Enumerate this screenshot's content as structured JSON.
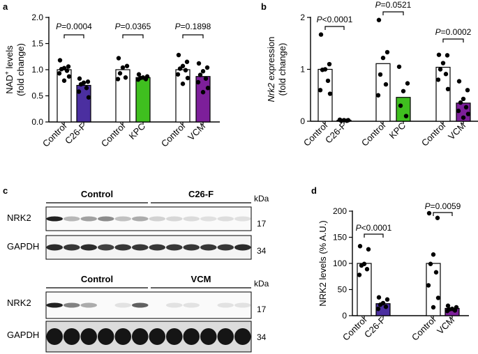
{
  "panel_labels": {
    "a": "a",
    "b": "b",
    "c": "c",
    "d": "d"
  },
  "colors": {
    "c26f": "#4b2fa0",
    "kpc": "#3fbf1f",
    "vcm": "#7d1f9a",
    "control": "#ffffff",
    "point": "#000000"
  },
  "chart_data": [
    {
      "panel": "a",
      "type": "bar",
      "ylabel_line1": "NAD",
      "ylabel_sup": "+",
      "ylabel_line1_rest": " levels",
      "ylabel_line2": "(fold change)",
      "ylim": [
        0,
        2.0
      ],
      "yticks": [
        "0.0",
        "0.5",
        "1.0",
        "1.5",
        "2.0"
      ],
      "ytick_values": [
        0,
        0.5,
        1.0,
        1.5,
        2.0
      ],
      "categories": [
        "Control",
        "C26-F",
        "Control",
        "KPC",
        "Control",
        "VCM"
      ],
      "fills": [
        "control",
        "c26f",
        "control",
        "kpc",
        "control",
        "vcm"
      ],
      "values": [
        1.0,
        0.7,
        1.0,
        0.85,
        1.0,
        0.87
      ],
      "points": [
        [
          1.18,
          1.06,
          1.03,
          1.01,
          0.98,
          0.93,
          0.87,
          0.79
        ],
        [
          0.83,
          0.77,
          0.75,
          0.72,
          0.65,
          0.58,
          0.47
        ],
        [
          1.22,
          1.07,
          1.04,
          0.93,
          0.85,
          0.82
        ],
        [
          0.91,
          0.87,
          0.85,
          0.84,
          0.82,
          0.81
        ],
        [
          1.28,
          1.15,
          1.07,
          1.02,
          0.99,
          0.91,
          0.84,
          0.73
        ],
        [
          1.12,
          1.04,
          0.97,
          0.9,
          0.83,
          0.76,
          0.65,
          0.57
        ]
      ],
      "comparisons": [
        {
          "p": "P",
          "text": "=0.0004"
        },
        {
          "p": "P",
          "text": "=0.0365"
        },
        {
          "p": "P",
          "text": "=0.1898"
        }
      ]
    },
    {
      "panel": "b",
      "type": "bar",
      "ylabel_italic": "Nrk2",
      "ylabel_line1_rest": " expression",
      "ylabel_line2": "(fold change)",
      "ylim": [
        0,
        2
      ],
      "yticks": [
        "0",
        "1",
        "2"
      ],
      "ytick_values": [
        0,
        1,
        2
      ],
      "categories": [
        "Control",
        "C26-F",
        "Control",
        "KPC",
        "Control",
        "VCM"
      ],
      "fills": [
        "control",
        "c26f",
        "control",
        "kpc",
        "control",
        "vcm"
      ],
      "values": [
        1.0,
        0.02,
        1.11,
        0.46,
        1.04,
        0.35
      ],
      "points": [
        [
          1.67,
          1.1,
          1.0,
          0.99,
          0.78,
          0.6,
          0.53
        ],
        [
          0.03,
          0.02,
          0.02,
          0.01,
          0.01
        ],
        [
          1.95,
          1.33,
          1.22,
          0.9,
          0.71,
          0.5
        ],
        [
          1.05,
          0.73,
          0.58,
          0.3,
          0.1
        ],
        [
          1.28,
          1.27,
          1.12,
          1.0,
          0.91,
          0.8,
          0.62
        ],
        [
          0.77,
          0.6,
          0.43,
          0.36,
          0.27,
          0.2,
          0.14,
          0.07
        ]
      ],
      "comparisons": [
        {
          "p": "P",
          "text": "<0.0001"
        },
        {
          "p": "P",
          "text": "=0.0521"
        },
        {
          "p": "P",
          "text": "=0.0002"
        }
      ]
    },
    {
      "panel": "d",
      "type": "bar",
      "ylabel": "NRK2 levels (% A.U.)",
      "ylim": [
        0,
        200
      ],
      "yticks": [
        "0",
        "50",
        "100",
        "150",
        "200"
      ],
      "ytick_values": [
        0,
        50,
        100,
        150,
        200
      ],
      "categories": [
        "Control",
        "C26-F",
        "Control",
        "VCM"
      ],
      "fills": [
        "control",
        "c26f",
        "control",
        "vcm"
      ],
      "values": [
        100,
        23,
        100,
        14
      ],
      "points": [
        [
          133,
          127,
          99,
          96,
          89,
          78
        ],
        [
          35,
          31,
          24,
          21,
          17,
          13
        ],
        [
          196,
          187,
          117,
          99,
          83,
          58,
          34,
          16
        ],
        [
          19,
          16,
          13,
          12,
          10,
          9
        ]
      ],
      "comparisons": [
        {
          "p": "P",
          "text": "<0.0001"
        },
        {
          "p": "P",
          "text": "=0.0059"
        }
      ]
    }
  ],
  "blots": {
    "top": {
      "group1": "Control",
      "group2": "C26-F",
      "kda": "kDa",
      "rows": [
        {
          "label": "NRK2",
          "mw": "17",
          "intensity": [
            0.95,
            0.25,
            0.35,
            0.45,
            0.2,
            0.3,
            0.12,
            0.1,
            0.08,
            0.06,
            0.07,
            0.06
          ]
        },
        {
          "label": "GAPDH",
          "mw": "34",
          "intensity": [
            0.9,
            0.85,
            0.9,
            0.8,
            0.85,
            0.85,
            0.85,
            0.85,
            0.85,
            0.85,
            0.85,
            0.9
          ]
        }
      ]
    },
    "bottom": {
      "group1": "Control",
      "group2": "VCM",
      "kda": "kDa",
      "rows": [
        {
          "label": "NRK2",
          "mw": "17",
          "intensity": [
            0.95,
            0.5,
            0.3,
            0.0,
            0.05,
            0.65,
            0.0,
            0.05,
            0.05,
            0.0,
            0.05,
            0.05
          ]
        },
        {
          "label": "GAPDH",
          "mw": "34",
          "intensity": [
            1,
            1,
            1,
            1,
            1,
            1,
            1,
            1,
            1,
            1,
            1,
            1
          ]
        }
      ]
    }
  }
}
